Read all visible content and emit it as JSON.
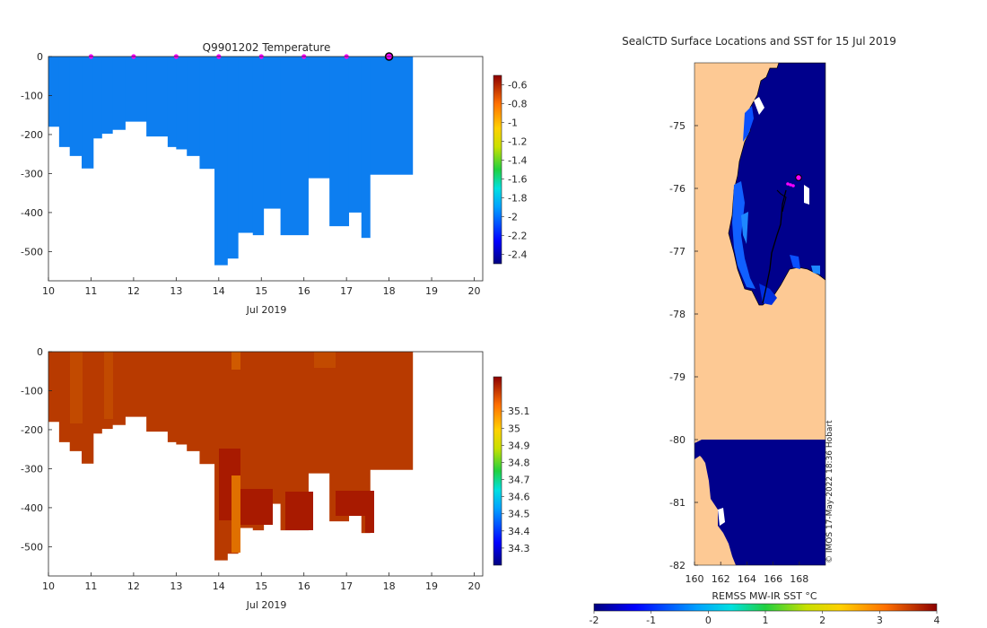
{
  "chart_data": [
    {
      "type": "heatmap",
      "name": "temperature-section",
      "title": "Q9901202  Temperature",
      "xlabel": "Jul 2019",
      "ylabel": "",
      "xlim": [
        10,
        20.2
      ],
      "ylim": [
        -575,
        0
      ],
      "x_ticks": [
        "10",
        "11",
        "12",
        "13",
        "14",
        "15",
        "16",
        "17",
        "18",
        "19",
        "20"
      ],
      "y_ticks": [
        "0",
        "-100",
        "-200",
        "-300",
        "-400",
        "-500"
      ],
      "profile_markers_x": [
        11,
        12,
        13,
        14,
        15,
        16,
        17
      ],
      "current_marker_x": 18,
      "fill_value": -2.15,
      "colorbar_ticks": [
        "-0.6",
        "-0.8",
        "-1",
        "-1.2",
        "-1.4",
        "-1.6",
        "-1.8",
        "-2",
        "-2.2",
        "-2.4"
      ],
      "colorbar_range": [
        -2.5,
        -0.5
      ],
      "profiles": [
        {
          "x0": 10.0,
          "x1": 10.25,
          "depth": 180
        },
        {
          "x0": 10.25,
          "x1": 10.5,
          "depth": 232
        },
        {
          "x0": 10.5,
          "x1": 10.78,
          "depth": 255
        },
        {
          "x0": 10.78,
          "x1": 11.05,
          "depth": 287
        },
        {
          "x0": 11.05,
          "x1": 11.25,
          "depth": 210
        },
        {
          "x0": 11.25,
          "x1": 11.5,
          "depth": 198
        },
        {
          "x0": 11.5,
          "x1": 11.8,
          "depth": 188
        },
        {
          "x0": 11.8,
          "x1": 12.3,
          "depth": 167
        },
        {
          "x0": 12.3,
          "x1": 12.8,
          "depth": 205
        },
        {
          "x0": 12.8,
          "x1": 13.0,
          "depth": 232
        },
        {
          "x0": 13.0,
          "x1": 13.25,
          "depth": 238
        },
        {
          "x0": 13.25,
          "x1": 13.55,
          "depth": 255
        },
        {
          "x0": 13.55,
          "x1": 13.9,
          "depth": 288
        },
        {
          "x0": 13.9,
          "x1": 14.2,
          "depth": 535
        },
        {
          "x0": 14.2,
          "x1": 14.45,
          "depth": 518
        },
        {
          "x0": 14.45,
          "x1": 14.8,
          "depth": 452
        },
        {
          "x0": 14.8,
          "x1": 15.05,
          "depth": 458
        },
        {
          "x0": 15.05,
          "x1": 15.45,
          "depth": 390
        },
        {
          "x0": 15.45,
          "x1": 16.1,
          "depth": 458
        },
        {
          "x0": 16.1,
          "x1": 16.6,
          "depth": 312
        },
        {
          "x0": 16.6,
          "x1": 17.05,
          "depth": 435
        },
        {
          "x0": 17.05,
          "x1": 17.35,
          "depth": 400
        },
        {
          "x0": 17.35,
          "x1": 17.55,
          "depth": 465
        },
        {
          "x0": 17.55,
          "x1": 18.55,
          "depth": 303
        }
      ]
    },
    {
      "type": "heatmap",
      "name": "salinity-section",
      "title": "",
      "xlabel": "Jul 2019",
      "ylabel": "",
      "xlim": [
        10,
        20.2
      ],
      "ylim": [
        -575,
        0
      ],
      "x_ticks": [
        "10",
        "11",
        "12",
        "13",
        "14",
        "15",
        "16",
        "17",
        "18",
        "19",
        "20"
      ],
      "y_ticks": [
        "0",
        "-100",
        "-200",
        "-300",
        "-400",
        "-500"
      ],
      "fill_value": 35.15,
      "colorbar_ticks": [
        "35.1",
        "35",
        "34.9",
        "34.8",
        "34.7",
        "34.6",
        "34.5",
        "34.4",
        "34.3"
      ],
      "colorbar_range": [
        34.2,
        35.3
      ],
      "profiles": "same as temperature-section"
    },
    {
      "type": "heatmap",
      "name": "sealctd-surface-map",
      "title": "SealCTD Surface Locations and SST for 15 Jul 2019",
      "xlabel": "",
      "ylabel": "",
      "x_ticks": [
        "160",
        "162",
        "164",
        "166",
        "168"
      ],
      "y_ticks": [
        "-75",
        "-76",
        "-77",
        "-78",
        "-79",
        "-80",
        "-81",
        "-82"
      ],
      "xlim": [
        160,
        170
      ],
      "ylim": [
        -82,
        -74
      ],
      "colorbar_label": "REMSS MW-IR SST °C",
      "colorbar_ticks": [
        "-2",
        "-1",
        "0",
        "1",
        "2",
        "3",
        "4"
      ],
      "colorbar_range": [
        -2,
        4
      ],
      "credit": "© IMOS 17-May-2022 18:36 Hobart",
      "surface_locations": [
        {
          "lon": 167.8,
          "lat": -75.85,
          "role": "current"
        },
        {
          "lon": 167.1,
          "lat": -75.95,
          "role": "past"
        },
        {
          "lon": 167.3,
          "lat": -76.0,
          "role": "past"
        },
        {
          "lon": 167.5,
          "lat": -75.97,
          "role": "past"
        }
      ]
    }
  ],
  "colors": {
    "temperature_fill": "#0d7ef0",
    "salinity_fill": "#b83a00",
    "sst_cold": "#00008c",
    "land": "#fdc994",
    "marker": "#ff00ff"
  }
}
